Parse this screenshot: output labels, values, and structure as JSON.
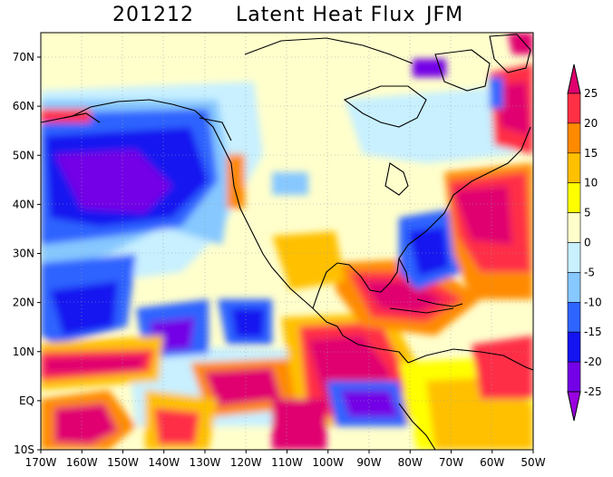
{
  "title": {
    "period": "201212",
    "variable": "Latent Heat Flux",
    "season": "JFM"
  },
  "map": {
    "lon_range": [
      -170,
      -50
    ],
    "lat_range": [
      -10,
      75
    ],
    "x_ticks": [
      "170W",
      "160W",
      "150W",
      "140W",
      "130W",
      "120W",
      "110W",
      "100W",
      "90W",
      "80W",
      "70W",
      "60W",
      "50W"
    ],
    "y_ticks": [
      "10S",
      "EQ",
      "10N",
      "20N",
      "30N",
      "40N",
      "50N",
      "60N",
      "70N"
    ],
    "gridlines": true
  },
  "colorbar": {
    "labels": [
      "25",
      "20",
      "15",
      "10",
      "5",
      "0",
      "-5",
      "-10",
      "-15",
      "-20",
      "-25"
    ],
    "colors": [
      "#e0006f",
      "#ff2f46",
      "#ff8a00",
      "#ffc000",
      "#ffff00",
      "#ffffcc",
      "#c8f0ff",
      "#86c8ff",
      "#2e64ff",
      "#1414f0",
      "#7300e6",
      "#9a00e0"
    ]
  },
  "chart_data": {
    "type": "heatmap",
    "title": "201212 Latent Heat Flux JFM",
    "xlim": [
      -170,
      -50
    ],
    "ylim": [
      -10,
      75
    ],
    "x_tick_labels": [
      "170W",
      "160W",
      "150W",
      "140W",
      "130W",
      "120W",
      "110W",
      "100W",
      "90W",
      "80W",
      "70W",
      "60W",
      "50W"
    ],
    "y_tick_labels": [
      "10S",
      "EQ",
      "10N",
      "20N",
      "30N",
      "40N",
      "50N",
      "60N",
      "70N"
    ],
    "colorbar_levels": [
      -25,
      -20,
      -15,
      -10,
      -5,
      0,
      5,
      10,
      15,
      20,
      25
    ],
    "regions": [
      {
        "lon": -155,
        "lat": 45,
        "value": -22
      },
      {
        "lon": -140,
        "lat": 52,
        "value": -18
      },
      {
        "lon": -145,
        "lat": 30,
        "value": -12
      },
      {
        "lon": -150,
        "lat": 20,
        "value": -16
      },
      {
        "lon": -125,
        "lat": 15,
        "value": -14
      },
      {
        "lon": -160,
        "lat": 7,
        "value": 22
      },
      {
        "lon": -145,
        "lat": 0,
        "value": 18
      },
      {
        "lon": -120,
        "lat": -3,
        "value": 20
      },
      {
        "lon": -95,
        "lat": 5,
        "value": 18
      },
      {
        "lon": -90,
        "lat": 1,
        "value": -18
      },
      {
        "lon": -80,
        "lat": 20,
        "value": 20
      },
      {
        "lon": -75,
        "lat": 33,
        "value": -18
      },
      {
        "lon": -65,
        "lat": 40,
        "value": 22
      },
      {
        "lon": -58,
        "lat": 25,
        "value": 15
      },
      {
        "lon": -55,
        "lat": 62,
        "value": 22
      },
      {
        "lon": -75,
        "lat": 69,
        "value": -22
      },
      {
        "lon": -100,
        "lat": 55,
        "value": 2
      },
      {
        "lon": -90,
        "lat": 65,
        "value": -3
      },
      {
        "lon": -110,
        "lat": 30,
        "value": 3
      },
      {
        "lon": -100,
        "lat": 25,
        "value": 12
      }
    ]
  }
}
